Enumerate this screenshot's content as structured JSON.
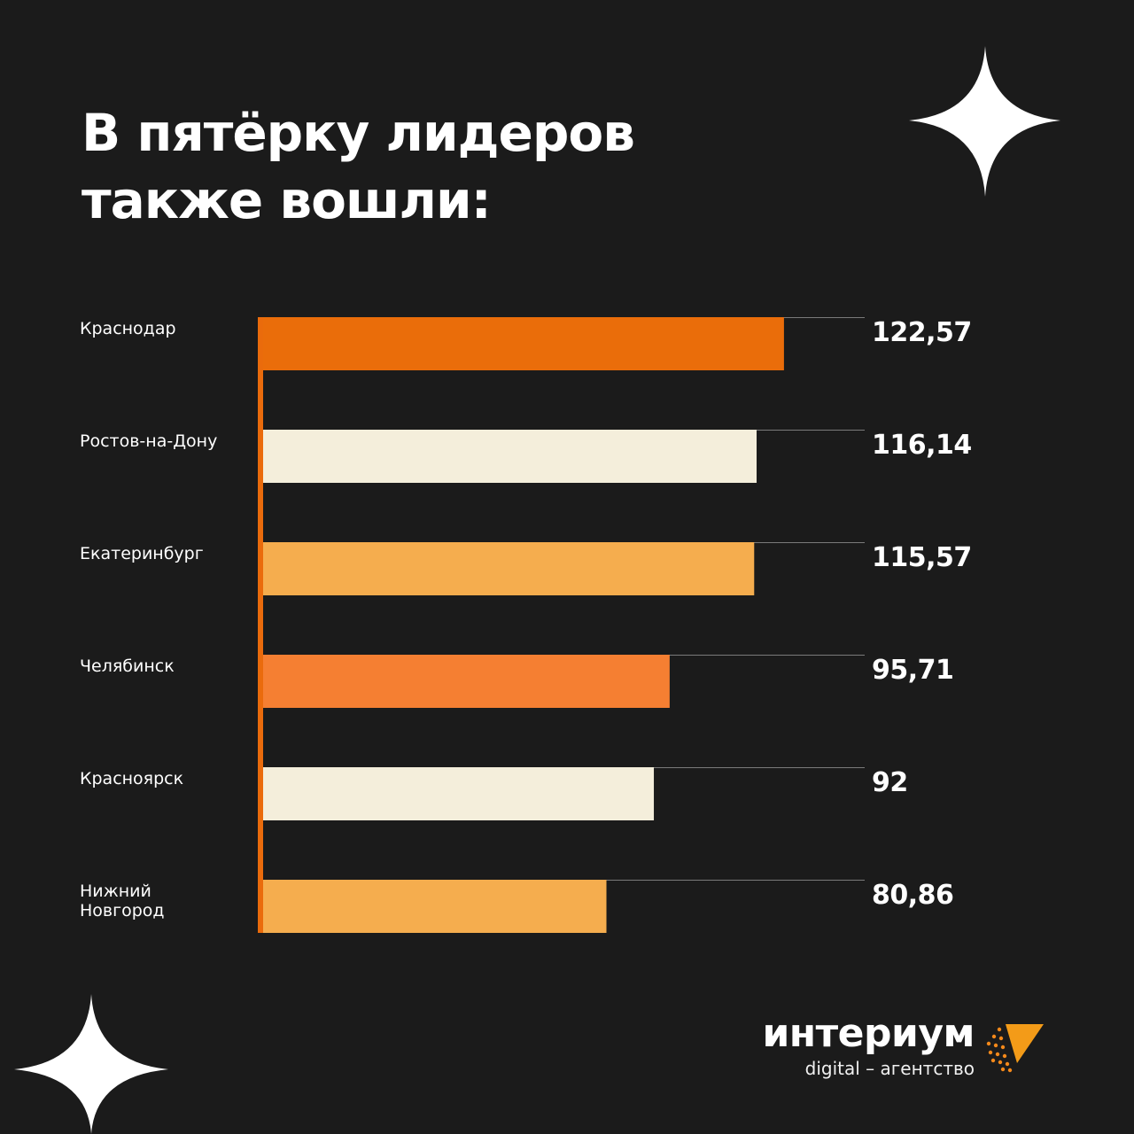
{
  "title": [
    "В пятёрку лидеров",
    "также вошли:"
  ],
  "brand": {
    "name": "интериум",
    "tagline": "digital – агентство",
    "logo_icon": "triangle-dots-logo"
  },
  "colors": {
    "background": "#1b1b1b",
    "text": "#ffffff",
    "axis": "#ea6b0c",
    "gridline": "#7a7a7a",
    "star": "#ffffff",
    "logo": "#f39b18"
  },
  "chart_data": {
    "type": "bar",
    "orientation": "horizontal",
    "categories": [
      "Краснодар",
      "Ростов-на-Дону",
      "Екатеринбург",
      "Челябинск",
      "Красноярск",
      "Нижний Новгород"
    ],
    "category_lines": [
      [
        "Краснодар"
      ],
      [
        "Ростов-на-Дону"
      ],
      [
        "Екатеринбург"
      ],
      [
        "Челябинск"
      ],
      [
        "Красноярск"
      ],
      [
        "Нижний",
        "Новгород"
      ]
    ],
    "values": [
      122.57,
      116.14,
      115.57,
      95.71,
      92,
      80.86
    ],
    "value_labels": [
      "122,57",
      "116,14",
      "115,57",
      "95,71",
      "92",
      "80,86"
    ],
    "bar_colors": [
      "#ea6d0a",
      "#f4eedb",
      "#f5ad4e",
      "#f57f32",
      "#f4eedb",
      "#f5ad4e"
    ],
    "xlim": [
      0,
      128
    ],
    "grid": true
  }
}
